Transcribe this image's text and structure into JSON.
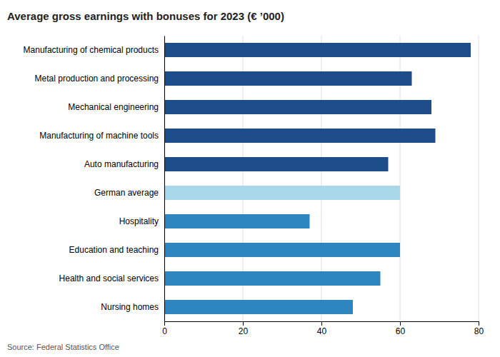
{
  "chart_data": {
    "type": "bar",
    "orientation": "horizontal",
    "title": "Average gross earnings with bonuses for 2023 (€ ’000)",
    "categories": [
      "Manufacturing of chemical products",
      "Metal production and processing",
      "Mechanical engineering",
      "Manufacturing of machine tools",
      "Auto manufacturing",
      "German average",
      "Hospitality",
      "Education and teaching",
      "Health and social services",
      "Nursing homes"
    ],
    "values": [
      78,
      63,
      68,
      69,
      57,
      60,
      37,
      60,
      55,
      48
    ],
    "colors": [
      "#1e4d8c",
      "#1e4d8c",
      "#1e4d8c",
      "#1e4d8c",
      "#1e4d8c",
      "#a8d8ea",
      "#2e86c1",
      "#2e86c1",
      "#2e86c1",
      "#2e86c1"
    ],
    "xlim": [
      0,
      80
    ],
    "xticks": [
      0,
      20,
      40,
      60,
      80
    ],
    "grid": true,
    "source": "Source: Federal Statistics Office"
  }
}
